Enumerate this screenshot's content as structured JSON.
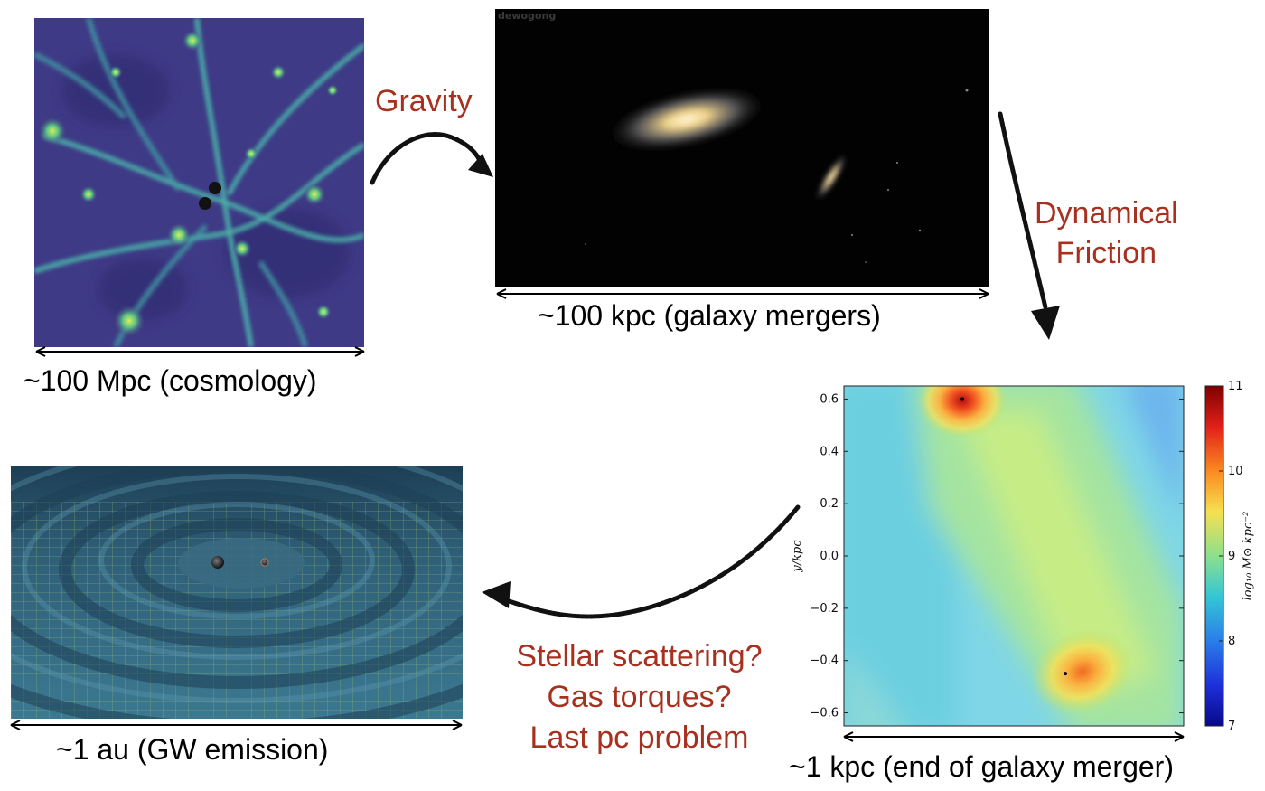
{
  "panels": {
    "cosmology": {
      "scale_caption": "~100 Mpc (cosmology)"
    },
    "galaxies": {
      "watermark": "dewogong",
      "scale_caption": "~100 kpc (galaxy mergers)"
    },
    "density_map": {
      "scale_caption": "~1 kpc (end of galaxy merger)",
      "y_axis_label": "y/kpc",
      "colorbar_label": "log₁₀ M⊙ kpc⁻²",
      "colorbar_ticks": [
        "11",
        "10",
        "9",
        "8",
        "7"
      ]
    },
    "gw": {
      "scale_caption": "~1 au (GW emission)"
    }
  },
  "arrows": {
    "gravity_label": "Gravity",
    "dynamical_friction_label": [
      "Dynamical",
      "Friction"
    ],
    "final_stage_label": [
      "Stellar scattering?",
      "Gas torques?",
      "Last pc problem"
    ]
  },
  "chart_data": {
    "type": "heatmap",
    "title": "",
    "xlabel": "",
    "ylabel": "y/kpc",
    "yticks": [
      "0.6",
      "0.4",
      "0.2",
      "0.0",
      "−0.2",
      "−0.4",
      "−0.6"
    ],
    "ylim": [
      -0.65,
      0.65
    ],
    "colorbar": {
      "label": "log₁₀ M⊙ kpc⁻²",
      "range": [
        7,
        11
      ],
      "ticks": [
        11,
        10,
        9,
        8,
        7
      ]
    },
    "points": [
      {
        "y": 0.6
      },
      {
        "y": -0.45
      }
    ]
  },
  "colors": {
    "label_red": "#a8301f",
    "cosmic_web_bg": "#3f3a86",
    "gw_bg": "#2f5f78"
  }
}
